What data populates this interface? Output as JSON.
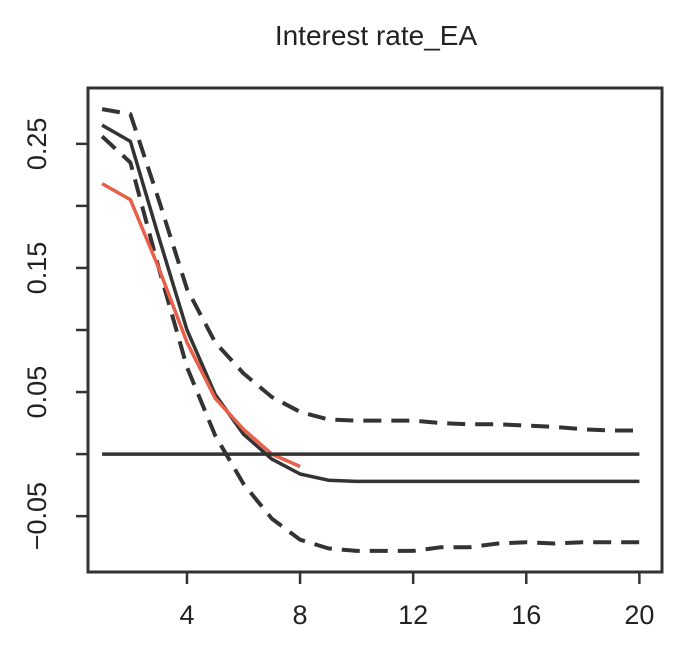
{
  "chart_data": {
    "type": "line",
    "title": "Interest rate_EA",
    "xlabel": "",
    "ylabel": "",
    "xlim": [
      0.5,
      20.8
    ],
    "ylim": [
      -0.095,
      0.295
    ],
    "xticks": [
      4,
      8,
      12,
      16,
      20
    ],
    "xtick_labels": [
      "4",
      "8",
      "12",
      "16",
      "20"
    ],
    "yticks": [
      -0.05,
      0.05,
      0.15,
      0.25
    ],
    "ytick_labels": [
      "−0.05",
      "0.05",
      "0.15",
      "0.25"
    ],
    "yminor_ticks": [
      0.0,
      0.1,
      0.2
    ],
    "grid": false,
    "legend": "none",
    "colors": {
      "median": "#333333",
      "bands": "#333333",
      "alt": "#e8604a",
      "zero": "#333333",
      "frame": "#333333"
    },
    "series": [
      {
        "style": "solid",
        "color": "#333333",
        "x": [
          1,
          2,
          3,
          4,
          5,
          6,
          7,
          8,
          9,
          10,
          11,
          12,
          13,
          14,
          15,
          16,
          17,
          18,
          19,
          20
        ],
        "values": [
          0.265,
          0.252,
          0.175,
          0.1,
          0.048,
          0.016,
          -0.004,
          -0.016,
          -0.021,
          -0.022,
          -0.022,
          -0.022,
          -0.022,
          -0.022,
          -0.022,
          -0.022,
          -0.022,
          -0.022,
          -0.022,
          -0.022
        ]
      },
      {
        "style": "dashed",
        "color": "#333333",
        "x": [
          1,
          2,
          3,
          4,
          5,
          6,
          7,
          8,
          9,
          10,
          11,
          12,
          13,
          14,
          15,
          16,
          17,
          18,
          19,
          20
        ],
        "values": [
          0.278,
          0.274,
          0.205,
          0.133,
          0.09,
          0.065,
          0.046,
          0.034,
          0.028,
          0.027,
          0.027,
          0.027,
          0.025,
          0.024,
          0.024,
          0.023,
          0.022,
          0.02,
          0.019,
          0.019
        ]
      },
      {
        "style": "dashed",
        "color": "#333333",
        "x": [
          1,
          2,
          3,
          4,
          5,
          6,
          7,
          8,
          9,
          10,
          11,
          12,
          13,
          14,
          15,
          16,
          17,
          18,
          19,
          20
        ],
        "values": [
          0.256,
          0.235,
          0.15,
          0.07,
          0.015,
          -0.024,
          -0.052,
          -0.069,
          -0.076,
          -0.078,
          -0.078,
          -0.078,
          -0.075,
          -0.075,
          -0.072,
          -0.071,
          -0.072,
          -0.071,
          -0.071,
          -0.071
        ]
      },
      {
        "style": "solid",
        "color": "#e8604a",
        "x": [
          1,
          2,
          3,
          4,
          5,
          6,
          7,
          8
        ],
        "values": [
          0.218,
          0.205,
          0.15,
          0.09,
          0.045,
          0.02,
          0.0,
          -0.01
        ]
      },
      {
        "style": "solid",
        "color": "#333333",
        "x": [
          1,
          20
        ],
        "values": [
          0.0,
          0.0
        ]
      }
    ]
  }
}
